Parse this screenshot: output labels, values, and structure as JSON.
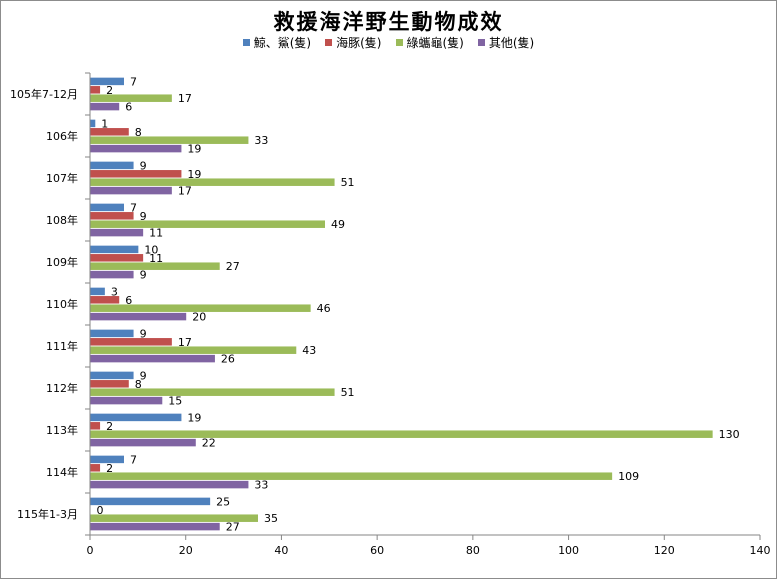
{
  "chart_data": {
    "type": "bar",
    "orientation": "horizontal",
    "title": "救援海洋野生動物成效",
    "categories": [
      "105年7-12月",
      "106年",
      "107年",
      "108年",
      "109年",
      "110年",
      "111年",
      "112年",
      "113年",
      "114年",
      "115年1-3月"
    ],
    "series": [
      {
        "name": "鯨、鯊(隻)",
        "color": "#4f81bd",
        "values": [
          7,
          1,
          9,
          7,
          10,
          3,
          9,
          9,
          19,
          7,
          25
        ]
      },
      {
        "name": "海豚(隻)",
        "color": "#c0504d",
        "values": [
          2,
          8,
          19,
          9,
          11,
          6,
          17,
          8,
          2,
          2,
          0
        ]
      },
      {
        "name": "綠蠵龜(隻)",
        "color": "#9bbb59",
        "values": [
          17,
          33,
          51,
          49,
          27,
          46,
          43,
          51,
          130,
          109,
          35
        ]
      },
      {
        "name": "其他(隻)",
        "color": "#8064a2",
        "values": [
          6,
          19,
          17,
          11,
          9,
          20,
          26,
          15,
          22,
          33,
          27
        ]
      }
    ],
    "xlim": [
      0,
      140
    ],
    "xticks": [
      "0",
      "20",
      "40",
      "60",
      "80",
      "100",
      "120",
      "140"
    ],
    "grid": false,
    "legend_position": "top"
  }
}
